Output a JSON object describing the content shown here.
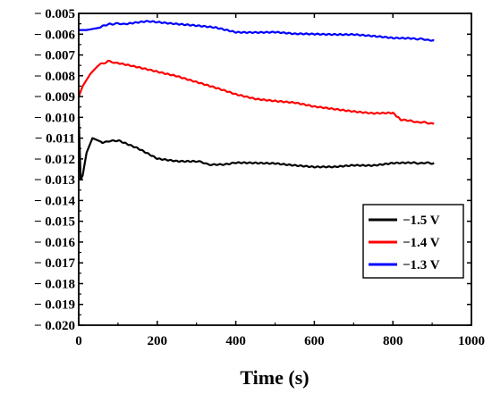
{
  "chart_data": {
    "type": "line",
    "title": "",
    "xlabel": "Time (s)",
    "ylabel": "",
    "xlim": [
      0,
      1000
    ],
    "ylim": [
      -0.02,
      -0.005
    ],
    "x_ticks": [
      0,
      200,
      400,
      600,
      800,
      1000
    ],
    "x_tick_labels": [
      "0",
      "200",
      "400",
      "600",
      "800",
      "1000"
    ],
    "y_ticks": [
      -0.005,
      -0.006,
      -0.007,
      -0.008,
      -0.009,
      -0.01,
      -0.011,
      -0.012,
      -0.013,
      -0.014,
      -0.015,
      -0.016,
      -0.017,
      -0.018,
      -0.019,
      -0.02
    ],
    "y_tick_labels": [
      "− 0.005",
      "− 0.006",
      "− 0.007",
      "− 0.008",
      "− 0.009",
      "− 0.010",
      "− 0.011",
      "− 0.012",
      "− 0.013",
      "− 0.014",
      "− 0.015",
      "− 0.016",
      "− 0.017",
      "− 0.018",
      "− 0.019",
      "− 0.020"
    ],
    "grid": false,
    "legend_position": "lower-right",
    "series": [
      {
        "name": "−1.5 V",
        "color": "#000000",
        "x": [
          0,
          5,
          10,
          20,
          35,
          60,
          100,
          150,
          200,
          250,
          300,
          340,
          400,
          450,
          500,
          550,
          600,
          650,
          700,
          750,
          800,
          850,
          905
        ],
        "y": [
          -0.01,
          -0.013,
          -0.0128,
          -0.0117,
          -0.011,
          -0.0112,
          -0.0111,
          -0.0115,
          -0.012,
          -0.0121,
          -0.0121,
          -0.0123,
          -0.0122,
          -0.0122,
          -0.0122,
          -0.0123,
          -0.0124,
          -0.0124,
          -0.0123,
          -0.0123,
          -0.0122,
          -0.0122,
          -0.0122
        ]
      },
      {
        "name": "−1.4 V",
        "color": "#ff0000",
        "x": [
          0,
          10,
          30,
          50,
          75,
          100,
          150,
          200,
          250,
          300,
          350,
          400,
          450,
          500,
          550,
          600,
          650,
          700,
          750,
          800,
          820,
          850,
          905
        ],
        "y": [
          -0.009,
          -0.0085,
          -0.0079,
          -0.0075,
          -0.0073,
          -0.0074,
          -0.0076,
          -0.0078,
          -0.008,
          -0.0083,
          -0.0086,
          -0.0089,
          -0.0091,
          -0.0092,
          -0.0093,
          -0.0095,
          -0.0096,
          -0.0097,
          -0.0098,
          -0.0098,
          -0.0101,
          -0.0102,
          -0.0103
        ]
      },
      {
        "name": "−1.3 V",
        "color": "#0000ff",
        "x": [
          0,
          20,
          50,
          80,
          120,
          170,
          200,
          250,
          300,
          350,
          400,
          450,
          500,
          550,
          600,
          650,
          700,
          750,
          800,
          850,
          905
        ],
        "y": [
          -0.0058,
          -0.0058,
          -0.0057,
          -0.0055,
          -0.0055,
          -0.0054,
          -0.0054,
          -0.0055,
          -0.0056,
          -0.0057,
          -0.0059,
          -0.0059,
          -0.0059,
          -0.006,
          -0.006,
          -0.006,
          -0.006,
          -0.0061,
          -0.0062,
          -0.0062,
          -0.0063
        ]
      }
    ]
  }
}
